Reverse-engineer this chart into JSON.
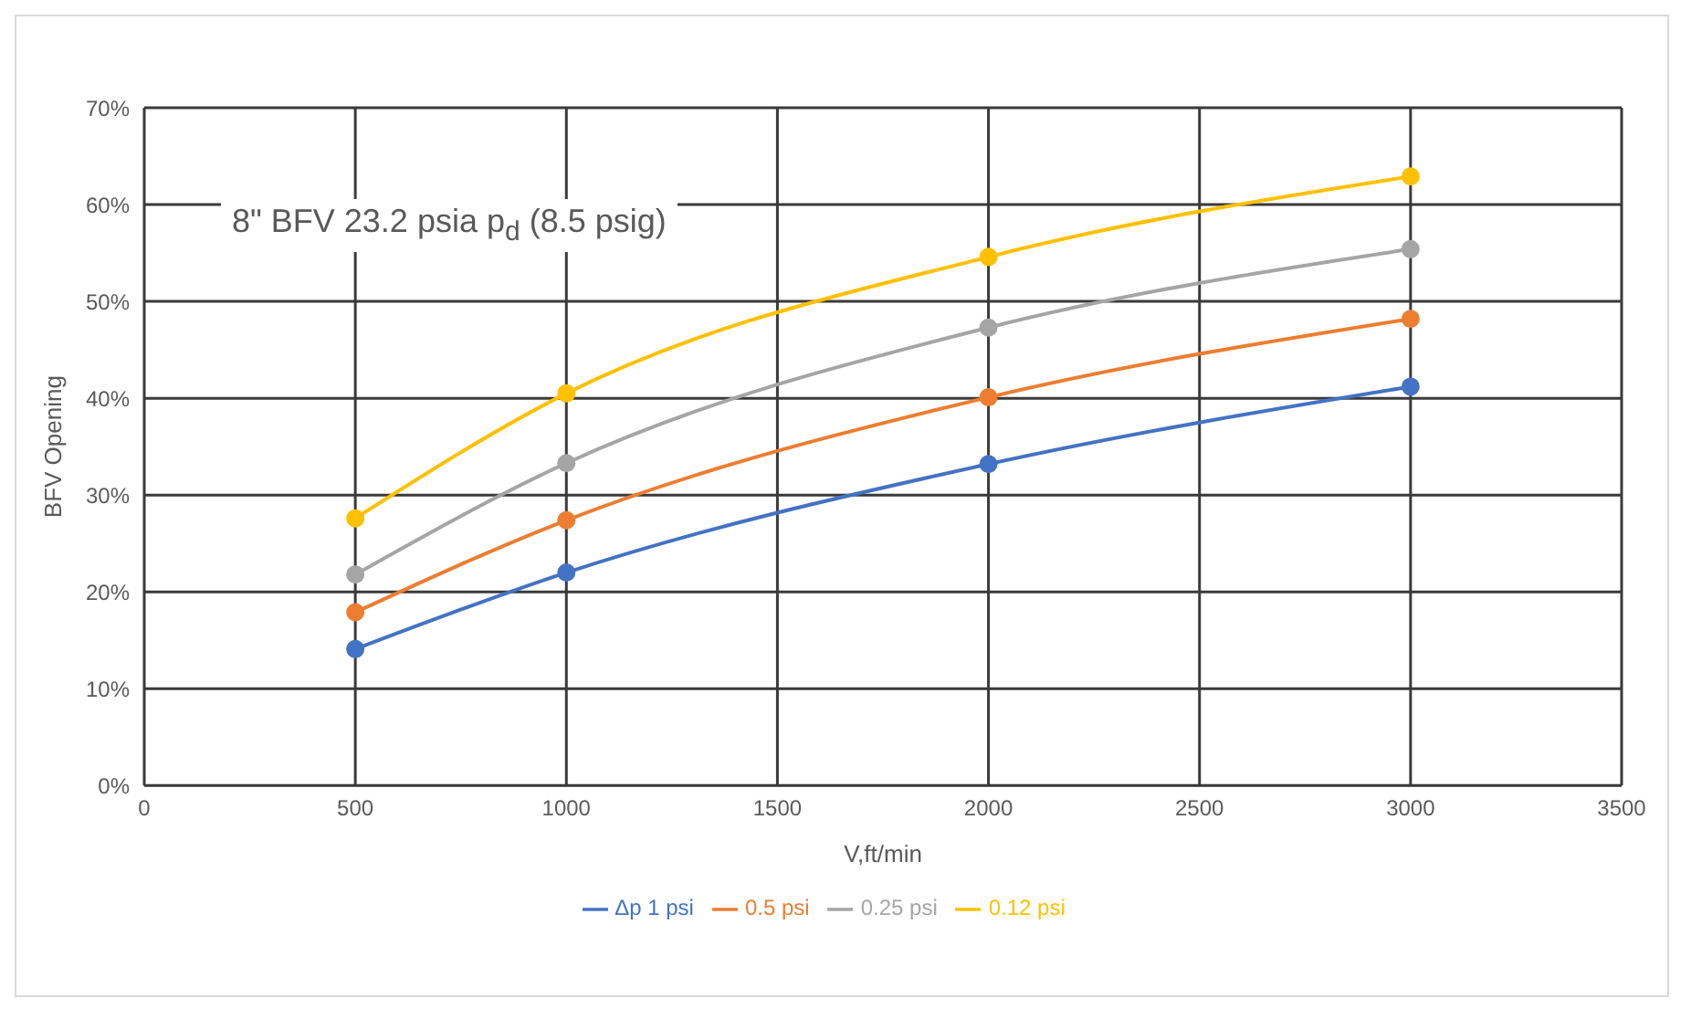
{
  "chart_data": {
    "type": "line",
    "xlabel": "V,ft/min",
    "ylabel": "BFV Opening",
    "annotations": [
      "8\" BFV 23.2 psia p$_{d}$ (8.5 psig)"
    ],
    "x": [
      500,
      1000,
      2000,
      3000
    ],
    "series": [
      {
        "name": "Δp 1 psi",
        "color": "#4472c4",
        "values": [
          14.1,
          22.0,
          33.2,
          41.2
        ]
      },
      {
        "name": "0.5 psi",
        "color": "#ed7d31",
        "values": [
          17.9,
          27.4,
          40.1,
          48.2
        ]
      },
      {
        "name": "0.25 psi",
        "color": "#a5a5a5",
        "values": [
          21.8,
          33.3,
          47.3,
          55.4
        ]
      },
      {
        "name": "0.12 psi",
        "color": "#ffc000",
        "values": [
          27.6,
          40.5,
          54.6,
          62.9
        ]
      }
    ],
    "xlim": [
      0,
      3500
    ],
    "xticks": [
      0,
      500,
      1000,
      1500,
      2000,
      2500,
      3000,
      3500
    ],
    "ylim": [
      0,
      70
    ],
    "yticks": [
      {
        "value": 0,
        "label": "0%"
      },
      {
        "value": 10,
        "label": "10%"
      },
      {
        "value": 20,
        "label": "20%"
      },
      {
        "value": 30,
        "label": "30%"
      },
      {
        "value": 40,
        "label": "40%"
      },
      {
        "value": 50,
        "label": "50%"
      },
      {
        "value": 60,
        "label": "60%"
      },
      {
        "value": 70,
        "label": "70%"
      }
    ],
    "grid": true,
    "legend": "bottom",
    "marker": "circle",
    "line_style": "solid"
  }
}
